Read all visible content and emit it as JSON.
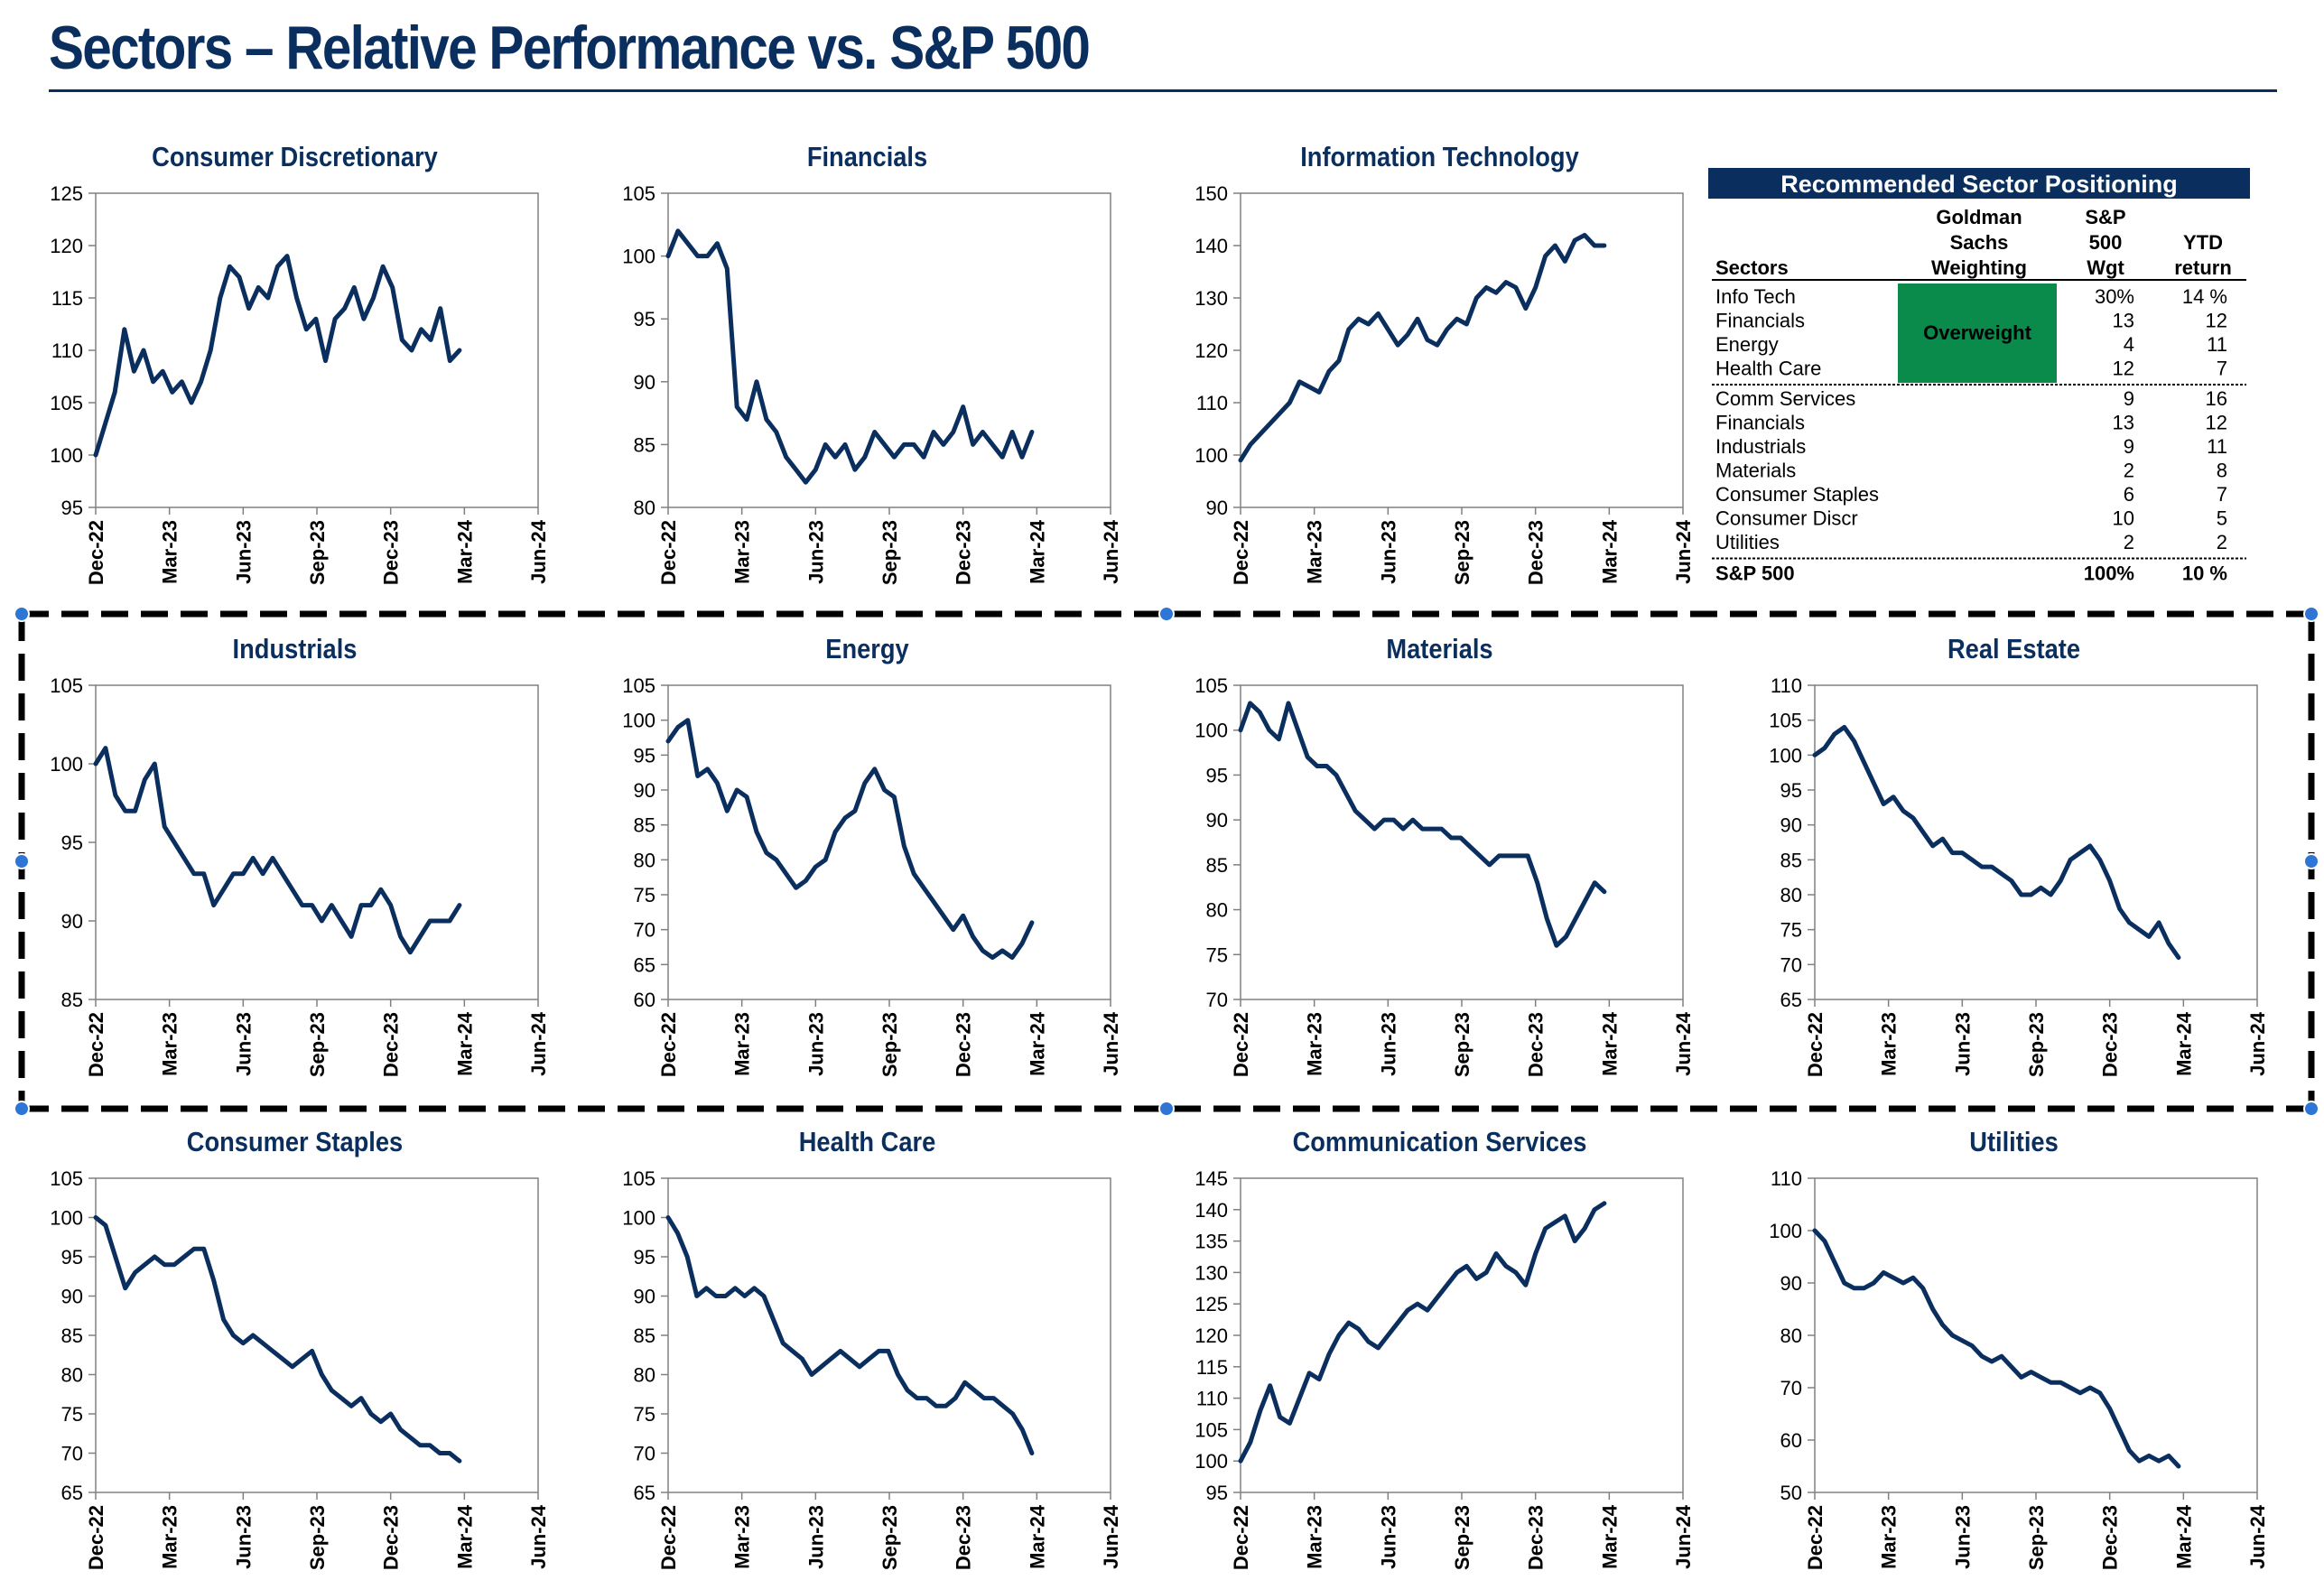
{
  "page": {
    "title": "Sectors – Relative Performance vs. S&P 500"
  },
  "colors": {
    "line": "#0a2f5f",
    "title": "#0a2f5f",
    "overweight": "#0a8a4b",
    "table_header": "#0a2f5f"
  },
  "chart_data": [
    {
      "type": "line",
      "title": "Consumer Discretionary",
      "x_ticks": [
        "Dec-22",
        "Mar-23",
        "Jun-23",
        "Sep-23",
        "Dec-23",
        "Mar-24",
        "Jun-24"
      ],
      "ylim": [
        95,
        125
      ],
      "y_ticks": [
        95,
        100,
        105,
        110,
        115,
        120,
        125
      ],
      "series": [
        {
          "values": [
            100,
            103,
            106,
            112,
            108,
            110,
            107,
            108,
            106,
            107,
            105,
            107,
            110,
            115,
            118,
            117,
            114,
            116,
            115,
            118,
            119,
            115,
            112,
            113,
            109,
            113,
            114,
            116,
            113,
            115,
            118,
            116,
            111,
            110,
            112,
            111,
            114,
            109,
            110
          ]
        }
      ]
    },
    {
      "type": "line",
      "title": "Financials",
      "x_ticks": [
        "Dec-22",
        "Mar-23",
        "Jun-23",
        "Sep-23",
        "Dec-23",
        "Mar-24",
        "Jun-24"
      ],
      "ylim": [
        80,
        105
      ],
      "y_ticks": [
        80,
        85,
        90,
        95,
        100,
        105
      ],
      "series": [
        {
          "values": [
            100,
            102,
            101,
            100,
            100,
            101,
            99,
            88,
            87,
            90,
            87,
            86,
            84,
            83,
            82,
            83,
            85,
            84,
            85,
            83,
            84,
            86,
            85,
            84,
            85,
            85,
            84,
            86,
            85,
            86,
            88,
            85,
            86,
            85,
            84,
            86,
            84,
            86
          ]
        }
      ]
    },
    {
      "type": "line",
      "title": "Information Technology",
      "x_ticks": [
        "Dec-22",
        "Mar-23",
        "Jun-23",
        "Sep-23",
        "Dec-23",
        "Mar-24",
        "Jun-24"
      ],
      "ylim": [
        90,
        150
      ],
      "y_ticks": [
        90,
        100,
        110,
        120,
        130,
        140,
        150
      ],
      "series": [
        {
          "values": [
            99,
            102,
            104,
            106,
            108,
            110,
            114,
            113,
            112,
            116,
            118,
            124,
            126,
            125,
            127,
            124,
            121,
            123,
            126,
            122,
            121,
            124,
            126,
            125,
            130,
            132,
            131,
            133,
            132,
            128,
            132,
            138,
            140,
            137,
            141,
            142,
            140,
            140
          ]
        }
      ]
    },
    {
      "type": "line",
      "title": "Industrials",
      "x_ticks": [
        "Dec-22",
        "Mar-23",
        "Jun-23",
        "Sep-23",
        "Dec-23",
        "Mar-24",
        "Jun-24"
      ],
      "ylim": [
        85,
        105
      ],
      "y_ticks": [
        85,
        90,
        95,
        100,
        105
      ],
      "series": [
        {
          "values": [
            100,
            101,
            98,
            97,
            97,
            99,
            100,
            96,
            95,
            94,
            93,
            93,
            91,
            92,
            93,
            93,
            94,
            93,
            94,
            93,
            92,
            91,
            91,
            90,
            91,
            90,
            89,
            91,
            91,
            92,
            91,
            89,
            88,
            89,
            90,
            90,
            90,
            91
          ]
        }
      ]
    },
    {
      "type": "line",
      "title": "Energy",
      "x_ticks": [
        "Dec-22",
        "Mar-23",
        "Jun-23",
        "Sep-23",
        "Dec-23",
        "Mar-24",
        "Jun-24"
      ],
      "ylim": [
        60,
        105
      ],
      "y_ticks": [
        60,
        65,
        70,
        75,
        80,
        85,
        90,
        95,
        100,
        105
      ],
      "series": [
        {
          "values": [
            97,
            99,
            100,
            92,
            93,
            91,
            87,
            90,
            89,
            84,
            81,
            80,
            78,
            76,
            77,
            79,
            80,
            84,
            86,
            87,
            91,
            93,
            90,
            89,
            82,
            78,
            76,
            74,
            72,
            70,
            72,
            69,
            67,
            66,
            67,
            66,
            68,
            71
          ]
        }
      ]
    },
    {
      "type": "line",
      "title": "Materials",
      "x_ticks": [
        "Dec-22",
        "Mar-23",
        "Jun-23",
        "Sep-23",
        "Dec-23",
        "Mar-24",
        "Jun-24"
      ],
      "ylim": [
        70,
        105
      ],
      "y_ticks": [
        70,
        75,
        80,
        85,
        90,
        95,
        100,
        105
      ],
      "series": [
        {
          "values": [
            100,
            103,
            102,
            100,
            99,
            103,
            100,
            97,
            96,
            96,
            95,
            93,
            91,
            90,
            89,
            90,
            90,
            89,
            90,
            89,
            89,
            89,
            88,
            88,
            87,
            86,
            85,
            86,
            86,
            86,
            86,
            83,
            79,
            76,
            77,
            79,
            81,
            83,
            82
          ]
        }
      ]
    },
    {
      "type": "line",
      "title": "Real Estate",
      "x_ticks": [
        "Dec-22",
        "Mar-23",
        "Jun-23",
        "Sep-23",
        "Dec-23",
        "Mar-24",
        "Jun-24"
      ],
      "ylim": [
        65,
        110
      ],
      "y_ticks": [
        65,
        70,
        75,
        80,
        85,
        90,
        95,
        100,
        105,
        110
      ],
      "series": [
        {
          "values": [
            100,
            101,
            103,
            104,
            102,
            99,
            96,
            93,
            94,
            92,
            91,
            89,
            87,
            88,
            86,
            86,
            85,
            84,
            84,
            83,
            82,
            80,
            80,
            81,
            80,
            82,
            85,
            86,
            87,
            85,
            82,
            78,
            76,
            75,
            74,
            76,
            73,
            71
          ]
        }
      ]
    },
    {
      "type": "line",
      "title": "Consumer Staples",
      "x_ticks": [
        "Dec-22",
        "Mar-23",
        "Jun-23",
        "Sep-23",
        "Dec-23",
        "Mar-24",
        "Jun-24"
      ],
      "ylim": [
        65,
        105
      ],
      "y_ticks": [
        65,
        70,
        75,
        80,
        85,
        90,
        95,
        100,
        105
      ],
      "series": [
        {
          "values": [
            100,
            99,
            95,
            91,
            93,
            94,
            95,
            94,
            94,
            95,
            96,
            96,
            92,
            87,
            85,
            84,
            85,
            84,
            83,
            82,
            81,
            82,
            83,
            80,
            78,
            77,
            76,
            77,
            75,
            74,
            75,
            73,
            72,
            71,
            71,
            70,
            70,
            69
          ]
        }
      ]
    },
    {
      "type": "line",
      "title": "Health Care",
      "x_ticks": [
        "Dec-22",
        "Mar-23",
        "Jun-23",
        "Sep-23",
        "Dec-23",
        "Mar-24",
        "Jun-24"
      ],
      "ylim": [
        65,
        105
      ],
      "y_ticks": [
        65,
        70,
        75,
        80,
        85,
        90,
        95,
        100,
        105
      ],
      "series": [
        {
          "values": [
            100,
            98,
            95,
            90,
            91,
            90,
            90,
            91,
            90,
            91,
            90,
            87,
            84,
            83,
            82,
            80,
            81,
            82,
            83,
            82,
            81,
            82,
            83,
            83,
            80,
            78,
            77,
            77,
            76,
            76,
            77,
            79,
            78,
            77,
            77,
            76,
            75,
            73,
            70
          ]
        }
      ]
    },
    {
      "type": "line",
      "title": "Communication Services",
      "x_ticks": [
        "Dec-22",
        "Mar-23",
        "Jun-23",
        "Sep-23",
        "Dec-23",
        "Mar-24",
        "Jun-24"
      ],
      "ylim": [
        95,
        145
      ],
      "y_ticks": [
        95,
        100,
        105,
        110,
        115,
        120,
        125,
        130,
        135,
        140,
        145
      ],
      "series": [
        {
          "values": [
            100,
            103,
            108,
            112,
            107,
            106,
            110,
            114,
            113,
            117,
            120,
            122,
            121,
            119,
            118,
            120,
            122,
            124,
            125,
            124,
            126,
            128,
            130,
            131,
            129,
            130,
            133,
            131,
            130,
            128,
            133,
            137,
            138,
            139,
            135,
            137,
            140,
            141
          ]
        }
      ]
    },
    {
      "type": "line",
      "title": "Utilities",
      "x_ticks": [
        "Dec-22",
        "Mar-23",
        "Jun-23",
        "Sep-23",
        "Dec-23",
        "Mar-24",
        "Jun-24"
      ],
      "ylim": [
        50,
        110
      ],
      "y_ticks": [
        50,
        60,
        70,
        80,
        90,
        100,
        110
      ],
      "series": [
        {
          "values": [
            100,
            98,
            94,
            90,
            89,
            89,
            90,
            92,
            91,
            90,
            91,
            89,
            85,
            82,
            80,
            79,
            78,
            76,
            75,
            76,
            74,
            72,
            73,
            72,
            71,
            71,
            70,
            69,
            70,
            69,
            66,
            62,
            58,
            56,
            57,
            56,
            57,
            55
          ]
        }
      ]
    }
  ],
  "table": {
    "title": "Recommended Sector Positioning",
    "headers": {
      "sectors": "Sectors",
      "gs_line1": "Goldman",
      "gs_line2": "Sachs",
      "gs_line3": "Weighting",
      "sp_line1": "S&P",
      "sp_line2": "500",
      "sp_line3": "Wgt",
      "ytd_line1": "YTD",
      "ytd_line2": "return"
    },
    "overweight_label": "Overweight",
    "overweight_rows": [
      {
        "sector": "Info Tech",
        "wgt": "30%",
        "ytd": "14 %"
      },
      {
        "sector": "Financials",
        "wgt": "13",
        "ytd": "12"
      },
      {
        "sector": "Energy",
        "wgt": "4",
        "ytd": "11"
      },
      {
        "sector": "Health Care",
        "wgt": "12",
        "ytd": "7"
      }
    ],
    "other_rows": [
      {
        "sector": "Comm Services",
        "wgt": "9",
        "ytd": "16"
      },
      {
        "sector": "Financials",
        "wgt": "13",
        "ytd": "12"
      },
      {
        "sector": "Industrials",
        "wgt": "9",
        "ytd": "11"
      },
      {
        "sector": "Materials",
        "wgt": "2",
        "ytd": "8"
      },
      {
        "sector": "Consumer Staples",
        "wgt": "6",
        "ytd": "7"
      },
      {
        "sector": "Consumer Discr",
        "wgt": "10",
        "ytd": "5"
      },
      {
        "sector": "Utilities",
        "wgt": "2",
        "ytd": "2"
      }
    ],
    "total_row": {
      "sector": "S&P 500",
      "wgt": "100%",
      "ytd": "10 %"
    }
  }
}
